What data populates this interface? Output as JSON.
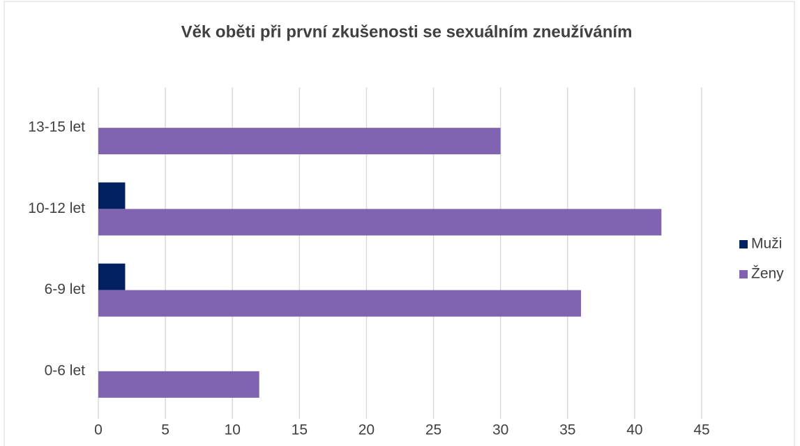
{
  "chart_data": {
    "type": "hbar",
    "title": "Věk oběti při první zkušenosti se sexuálním zneužíváním",
    "categories": [
      "0-6 let",
      "6-9 let",
      "10-12 let",
      "13-15 let"
    ],
    "series": [
      {
        "name": "Muži",
        "color": "#002060",
        "values": [
          0,
          2,
          2,
          0
        ]
      },
      {
        "name": "Ženy",
        "color": "#8064b2",
        "values": [
          12,
          36,
          42,
          30
        ]
      }
    ],
    "xlim": [
      0,
      45
    ],
    "xticks": [
      0,
      5,
      10,
      15,
      20,
      25,
      30,
      35,
      40,
      45
    ],
    "grid": true,
    "legend": "right"
  }
}
